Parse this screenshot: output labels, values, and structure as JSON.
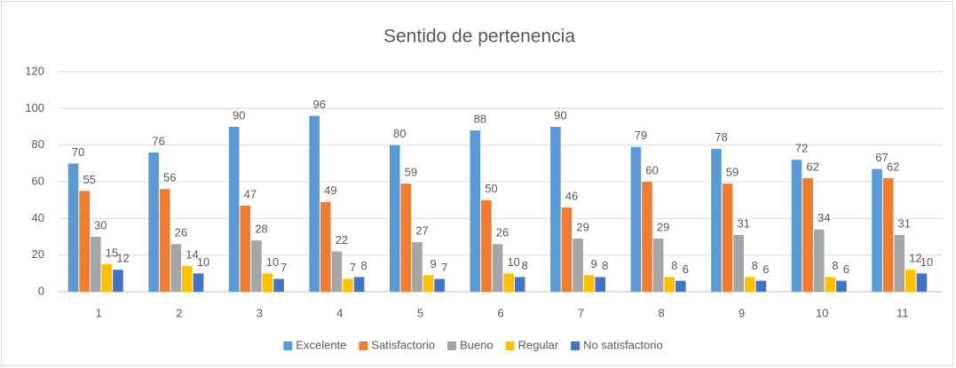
{
  "chart_data": {
    "type": "bar",
    "title": "Sentido de pertenencia",
    "categories": [
      "1",
      "2",
      "3",
      "4",
      "5",
      "6",
      "7",
      "8",
      "9",
      "10",
      "11"
    ],
    "series": [
      {
        "name": "Excelente",
        "color": "#5b9bd5",
        "values": [
          70,
          76,
          90,
          96,
          80,
          88,
          90,
          79,
          78,
          72,
          67
        ]
      },
      {
        "name": "Satisfactorio",
        "color": "#ed7d31",
        "values": [
          55,
          56,
          47,
          49,
          59,
          50,
          46,
          60,
          59,
          62,
          62
        ]
      },
      {
        "name": "Bueno",
        "color": "#a5a5a5",
        "values": [
          30,
          26,
          28,
          22,
          27,
          26,
          29,
          29,
          31,
          34,
          31
        ]
      },
      {
        "name": "Regular",
        "color": "#ffc000",
        "values": [
          15,
          14,
          10,
          7,
          9,
          10,
          9,
          8,
          8,
          8,
          12
        ]
      },
      {
        "name": "No satisfactorio",
        "color": "#4472c4",
        "values": [
          12,
          10,
          7,
          8,
          7,
          8,
          8,
          6,
          6,
          6,
          10
        ]
      }
    ],
    "ylim": [
      0,
      120
    ],
    "yticks": [
      0,
      20,
      40,
      60,
      80,
      100,
      120
    ],
    "grid": true,
    "legend": "bottom"
  }
}
